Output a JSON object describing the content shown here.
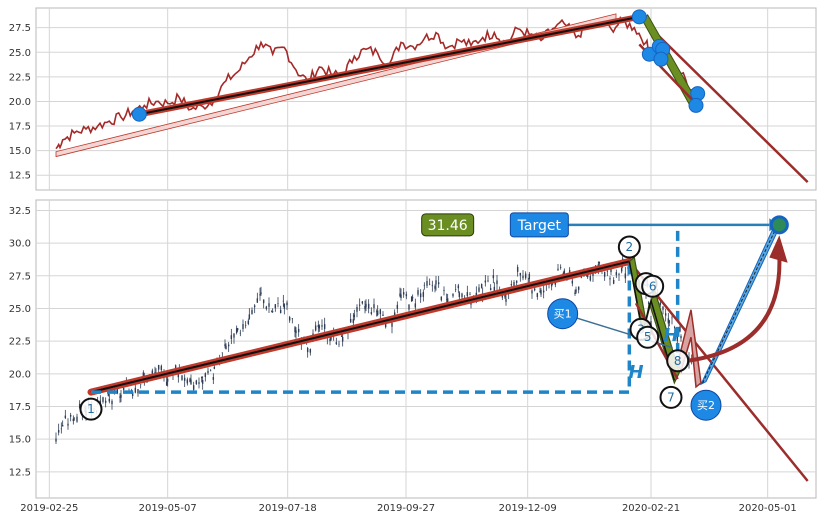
{
  "colors": {
    "price_line": "#a32a28",
    "trend_red": "#c0392b",
    "trend_dark": "#9b2d2b",
    "olive": "#6b8e23",
    "blue": "#1e88e5",
    "dashed_blue": "#1f85c9",
    "candle": "#2f3e56",
    "grid": "#d5d5d5",
    "frame": "#b8b8b8"
  },
  "chart_data": [
    {
      "type": "line",
      "panel": "top",
      "ylim": [
        11,
        29.5
      ],
      "yticks": [
        "12.5",
        "15.0",
        "17.5",
        "20.0",
        "22.5",
        "25.0",
        "27.5"
      ],
      "xlim": [
        "2019-02-17",
        "2020-05-30"
      ],
      "grid": true,
      "series": [
        {
          "x": [
            "2019-03-01",
            "2019-03-05",
            "2019-03-12",
            "2019-03-19",
            "2019-03-26",
            "2019-04-02",
            "2019-04-09",
            "2019-04-16",
            "2019-04-23",
            "2019-04-30",
            "2019-05-07",
            "2019-05-14",
            "2019-05-21",
            "2019-05-28",
            "2019-06-04",
            "2019-06-11",
            "2019-06-18",
            "2019-06-25",
            "2019-07-02",
            "2019-07-09",
            "2019-07-16",
            "2019-07-23",
            "2019-07-30",
            "2019-08-06",
            "2019-08-13",
            "2019-08-20",
            "2019-08-27",
            "2019-09-03",
            "2019-09-10",
            "2019-09-17",
            "2019-09-24",
            "2019-10-01",
            "2019-10-08",
            "2019-10-15",
            "2019-10-22",
            "2019-10-29",
            "2019-11-05",
            "2019-11-12",
            "2019-11-19",
            "2019-11-26",
            "2019-12-03",
            "2019-12-10",
            "2019-12-17",
            "2019-12-24",
            "2019-12-31",
            "2020-01-07",
            "2020-01-14",
            "2020-01-21",
            "2020-01-28",
            "2020-02-04",
            "2020-02-11",
            "2020-02-18",
            "2020-02-21",
            "2020-02-25",
            "2020-03-03",
            "2020-03-10",
            "2020-03-17",
            "2020-03-20"
          ],
          "values": [
            15.2,
            16.1,
            16.8,
            17.2,
            17.5,
            18.0,
            18.4,
            19.0,
            19.6,
            20.0,
            19.8,
            20.4,
            19.2,
            19.5,
            20.2,
            22.1,
            23.0,
            24.5,
            26.0,
            24.8,
            25.5,
            23.2,
            22.0,
            23.5,
            22.8,
            22.6,
            24.6,
            25.3,
            24.9,
            23.8,
            26.0,
            25.6,
            26.4,
            27.0,
            25.5,
            26.2,
            25.7,
            26.5,
            27.0,
            25.8,
            27.4,
            26.8,
            26.2,
            27.4,
            27.9,
            26.5,
            27.8,
            28.0,
            27.4,
            28.1,
            27.5,
            26.0,
            24.4,
            25.6,
            24.2,
            22.8,
            21.2,
            19.9
          ]
        }
      ]
    },
    {
      "type": "candlestick",
      "panel": "bottom",
      "ylim": [
        10.5,
        33.3
      ],
      "yticks": [
        "12.5",
        "15.0",
        "17.5",
        "20.0",
        "22.5",
        "25.0",
        "27.5",
        "30.0",
        "32.5"
      ],
      "xticks": [
        "2019-02-25",
        "2019-05-07",
        "2019-07-18",
        "2019-09-27",
        "2019-12-09",
        "2020-02-21",
        "2020-05-01"
      ],
      "xlim": [
        "2019-02-17",
        "2020-05-30"
      ],
      "grid": true,
      "annotations": {
        "value_label": "31.46",
        "target_label": "Target",
        "buy1_label": "买1",
        "buy2_label": "买2",
        "h_label": "H",
        "points": [
          "1",
          "2",
          "3",
          "4",
          "5",
          "6",
          "7",
          "8"
        ]
      }
    }
  ]
}
